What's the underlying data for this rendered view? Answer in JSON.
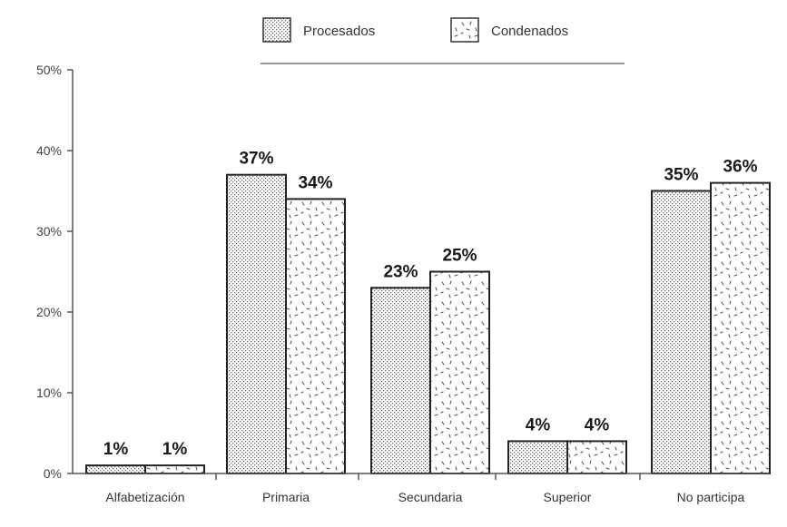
{
  "chart_data": {
    "type": "bar",
    "title": "",
    "xlabel": "",
    "ylabel": "",
    "ylim": [
      0,
      50
    ],
    "y_ticks": [
      "0%",
      "10%",
      "20%",
      "30%",
      "40%",
      "50%"
    ],
    "y_tick_values": [
      0,
      10,
      20,
      30,
      40,
      50
    ],
    "grid": false,
    "legend_position": "top-center",
    "categories": [
      "Alfabetización",
      "Primaria",
      "Secundaria",
      "Superior",
      "No participa"
    ],
    "series": [
      {
        "name": "Procesados",
        "values": [
          1,
          37,
          23,
          4,
          35
        ],
        "labels": [
          "1%",
          "37%",
          "23%",
          "4%",
          "35%"
        ],
        "pattern": "dense-dots"
      },
      {
        "name": "Condenados",
        "values": [
          1,
          34,
          25,
          4,
          36
        ],
        "labels": [
          "1%",
          "34%",
          "25%",
          "4%",
          "36%"
        ],
        "pattern": "sparse-dashes"
      }
    ],
    "colors": {
      "axis": "#555555",
      "bar_outline": "#222222",
      "fill": "#ffffff"
    }
  }
}
